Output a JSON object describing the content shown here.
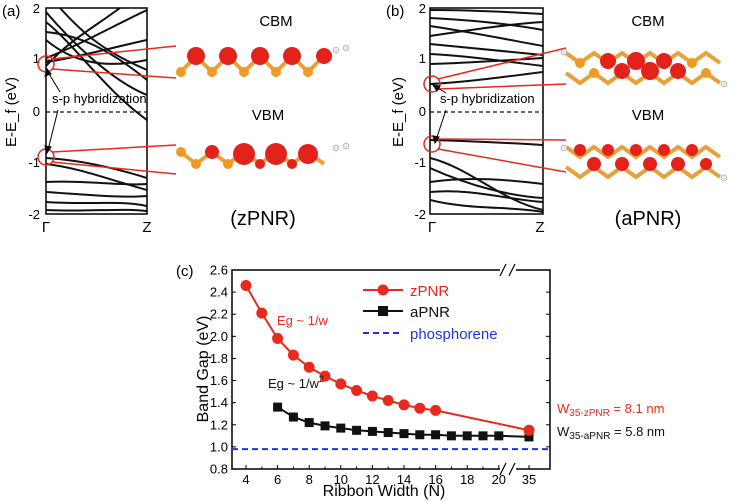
{
  "panels": {
    "a": {
      "label": "(a)",
      "ylabel": "E-E_f (eV)",
      "yticks": [
        "2",
        "1",
        "0",
        "-1",
        "-2"
      ],
      "xticks": [
        "Γ",
        "Z"
      ],
      "hybrid_label": "s-p hybridization",
      "cbm": "CBM",
      "vbm": "VBM",
      "name": "(zPNR)"
    },
    "b": {
      "label": "(b)",
      "ylabel": "E-E_f (eV)",
      "yticks": [
        "2",
        "1",
        "0",
        "-1",
        "-2"
      ],
      "xticks": [
        "Γ",
        "Z"
      ],
      "hybrid_label": "s-p hybridization",
      "cbm": "CBM",
      "vbm": "VBM",
      "name": "(aPNR)"
    },
    "c": {
      "label": "(c)"
    }
  },
  "colors": {
    "zpnr": "#e8291c",
    "apnr": "#111111",
    "phosphorene": "#2233dd",
    "density": "#e3221b",
    "atom": "#ef9a22",
    "hydrogen": "#e8e8ee"
  },
  "chart_data": {
    "type": "line",
    "xlabel": "Ribbon Width (N)",
    "ylabel": "Band Gap (eV)",
    "ylim": [
      0.8,
      2.6
    ],
    "yticks": [
      "0.8",
      "1.0",
      "1.2",
      "1.4",
      "1.6",
      "1.8",
      "2.0",
      "2.2",
      "2.4",
      "2.6"
    ],
    "xticks": [
      "4",
      "6",
      "8",
      "10",
      "12",
      "14",
      "16",
      "18",
      "20",
      "35"
    ],
    "x_axis_break": "between 20 and 35",
    "series": [
      {
        "name": "zPNR",
        "x": [
          4,
          5,
          6,
          7,
          8,
          9,
          10,
          11,
          12,
          13,
          14,
          15,
          16,
          35
        ],
        "values": [
          2.46,
          2.21,
          1.98,
          1.83,
          1.72,
          1.64,
          1.57,
          1.51,
          1.46,
          1.42,
          1.38,
          1.35,
          1.33,
          1.15
        ]
      },
      {
        "name": "aPNR",
        "x": [
          6,
          7,
          8,
          9,
          10,
          11,
          12,
          13,
          14,
          15,
          16,
          17,
          18,
          19,
          20,
          35
        ],
        "values": [
          1.36,
          1.27,
          1.22,
          1.19,
          1.17,
          1.15,
          1.14,
          1.13,
          1.12,
          1.11,
          1.11,
          1.1,
          1.1,
          1.1,
          1.1,
          1.09
        ]
      },
      {
        "name": "phosphorene",
        "values": [
          0.98
        ]
      }
    ],
    "annotations": {
      "zpnr_trend": "Eg ~ 1/w",
      "apnr_trend": "Eg ~ 1/w",
      "apnr_trend_exp": "2",
      "w_zpnr_main": "W",
      "w_zpnr_sub": "35-zPNR",
      "w_zpnr_val": " = 8.1 nm",
      "w_apnr_main": "W",
      "w_apnr_sub": "35-aPNR",
      "w_apnr_val": " = 5.8 nm"
    },
    "legend_position": "top-right",
    "grid": false
  }
}
